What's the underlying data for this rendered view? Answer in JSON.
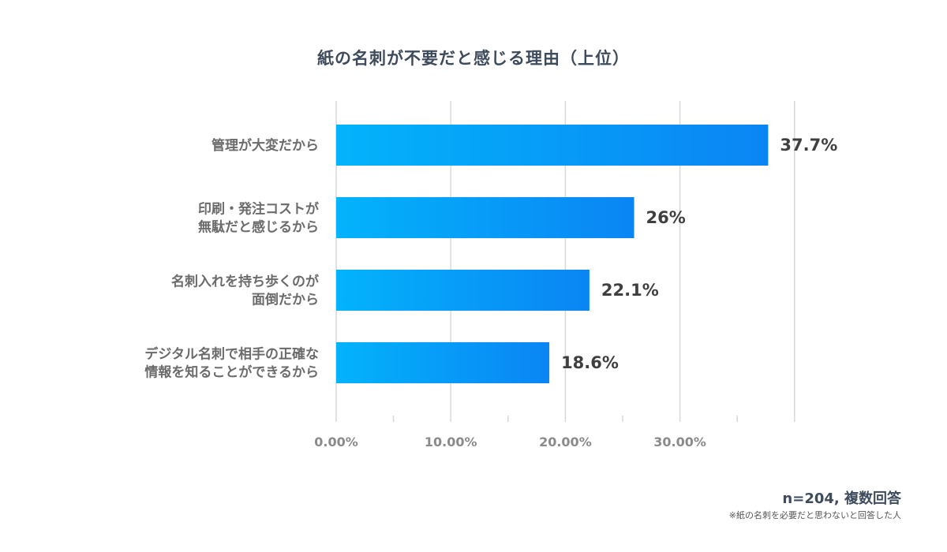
{
  "chart_data": {
    "type": "bar",
    "orientation": "horizontal",
    "title": "紙の名刺が不要だと感じる理由（上位）",
    "categories": [
      [
        "管理が大変だから"
      ],
      [
        "印刷・発注コストが",
        "無駄だと感じるから"
      ],
      [
        "名刺入れを持ち歩くのが",
        "面倒だから"
      ],
      [
        "デジタル名刺で相手の正確な",
        "情報を知ることができるから"
      ]
    ],
    "values": [
      37.7,
      26,
      22.1,
      18.6
    ],
    "value_labels": [
      "37.7%",
      "26%",
      "22.1%",
      "18.6%"
    ],
    "xlim": [
      0,
      40
    ],
    "xticks": [
      0,
      10,
      20,
      30
    ],
    "xtick_labels": [
      "0.00%",
      "10.00%",
      "20.00%",
      "30.00%"
    ],
    "grid": true,
    "bar_gradient": [
      "#03b3fb",
      "#0a85f4"
    ],
    "sample_note": "n=204, 複数回答",
    "footnote": "※紙の名刺を必要だと思わないと回答した人"
  }
}
